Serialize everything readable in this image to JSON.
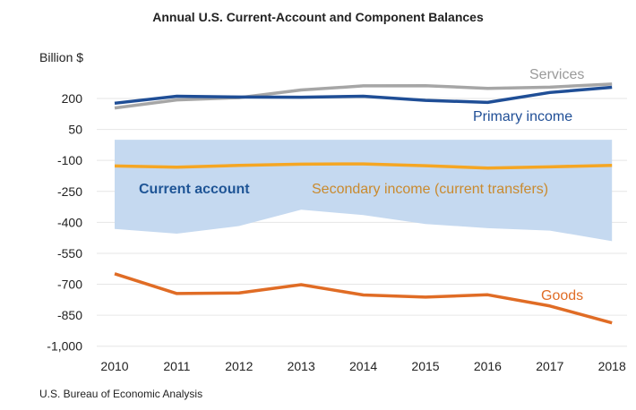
{
  "chart_data": {
    "type": "line",
    "title": "Annual U.S. Current-Account and Component Balances",
    "ylabel": "Billion $",
    "source": "U.S. Bureau of Economic Analysis",
    "x": [
      2010,
      2011,
      2012,
      2013,
      2014,
      2015,
      2016,
      2017,
      2018
    ],
    "yticks": [
      200,
      50,
      -100,
      -250,
      -400,
      -550,
      -700,
      -850,
      -1000
    ],
    "ytick_labels": [
      "200",
      "50",
      "-100",
      "-250",
      "-400",
      "-550",
      "-700",
      "-850",
      "-1,000"
    ],
    "ylim": [
      -1000,
      300
    ],
    "grid": true,
    "series": [
      {
        "name": "Current account",
        "kind": "area",
        "color": "#c5d9f0",
        "label_color": "#1f5596",
        "values": [
          -432,
          -455,
          -418,
          -339,
          -365,
          -408,
          -428,
          -440,
          -491
        ]
      },
      {
        "name": "Services",
        "color": "#a6a6a6",
        "values": [
          154,
          193,
          204,
          241,
          261,
          262,
          249,
          255,
          270
        ]
      },
      {
        "name": "Primary income",
        "color": "#1f4e96",
        "values": [
          177,
          211,
          207,
          206,
          211,
          191,
          181,
          229,
          254
        ]
      },
      {
        "name": "Secondary income (current transfers)",
        "color": "#f5a623",
        "label_color": "#c98a2e",
        "values": [
          -127,
          -133,
          -124,
          -118,
          -117,
          -126,
          -137,
          -131,
          -124
        ]
      },
      {
        "name": "Goods",
        "color": "#e06c25",
        "values": [
          -649,
          -745,
          -742,
          -702,
          -752,
          -762,
          -751,
          -805,
          -887
        ]
      }
    ]
  }
}
